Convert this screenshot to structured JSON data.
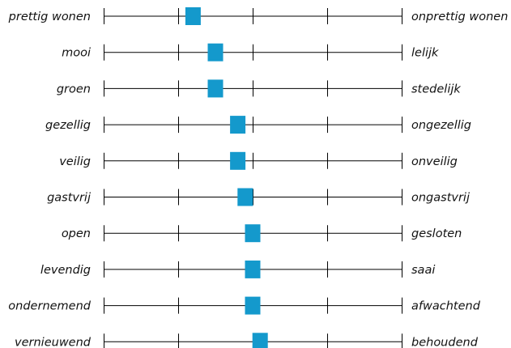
{
  "chart_data": {
    "type": "scatter",
    "scale": {
      "min": 1,
      "max": 5,
      "ticks": [
        1,
        2,
        3,
        4,
        5
      ]
    },
    "marker_color": "#1499cc",
    "items": [
      {
        "left": "prettig wonen",
        "right": "onprettig wonen",
        "value": 2.2
      },
      {
        "left": "mooi",
        "right": "lelijk",
        "value": 2.5
      },
      {
        "left": "groen",
        "right": "stedelijk",
        "value": 2.5
      },
      {
        "left": "gezellig",
        "right": "ongezellig",
        "value": 2.8
      },
      {
        "left": "veilig",
        "right": "onveilig",
        "value": 2.8
      },
      {
        "left": "gastvrij",
        "right": "ongastvrij",
        "value": 2.9
      },
      {
        "left": "open",
        "right": "gesloten",
        "value": 3.0
      },
      {
        "left": "levendig",
        "right": "saai",
        "value": 3.0
      },
      {
        "left": "ondernemend",
        "right": "afwachtend",
        "value": 3.0
      },
      {
        "left": "vernieuwend",
        "right": "behoudend",
        "value": 3.1
      }
    ]
  }
}
